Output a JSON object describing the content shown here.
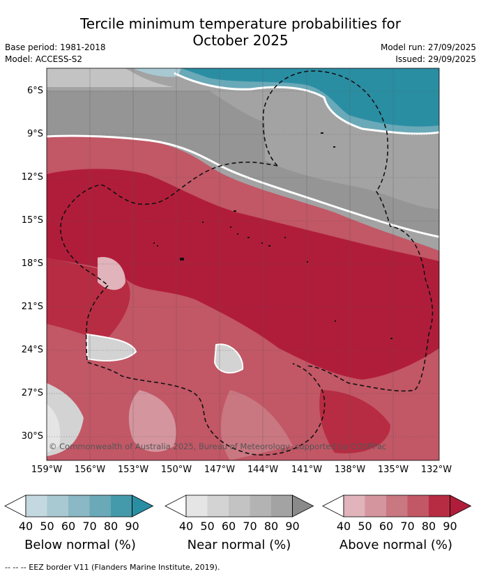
{
  "title_line1": "Tercile minimum temperature probabilities for",
  "title_line2": "October 2025",
  "base_period": "Base period: 1981-2018",
  "model": "Model: ACCESS-S2",
  "model_run": "Model run: 27/09/2025",
  "issued": "Issued: 29/09/2025",
  "copyright": "© Commonwealth of Australia 2025, Bureau of Meteorology, supported by COSPPac",
  "y_labels": [
    "6°S",
    "9°S",
    "12°S",
    "15°S",
    "18°S",
    "21°S",
    "24°S",
    "27°S",
    "30°S"
  ],
  "x_labels": [
    "159°W",
    "156°W",
    "153°W",
    "150°W",
    "147°W",
    "144°W",
    "141°W",
    "138°W",
    "135°W",
    "132°W"
  ],
  "colorbars": [
    {
      "title": "Below normal (%)",
      "ticks": [
        "40",
        "50",
        "60",
        "70",
        "80",
        "90"
      ],
      "colors": [
        "#ffffff",
        "#c3d8df",
        "#a8c9d1",
        "#8ab8c4",
        "#6aa9b8",
        "#449aab",
        "#2a8ea3"
      ]
    },
    {
      "title": "Near normal (%)",
      "ticks": [
        "40",
        "50",
        "60",
        "70",
        "80",
        "90"
      ],
      "colors": [
        "#ffffff",
        "#e5e5e5",
        "#d3d3d3",
        "#c3c3c3",
        "#b3b3b3",
        "#a3a3a3",
        "#8a8a8a"
      ]
    },
    {
      "title": "Above normal (%)",
      "ticks": [
        "40",
        "50",
        "60",
        "70",
        "80",
        "90"
      ],
      "colors": [
        "#ffffff",
        "#e1b3bb",
        "#d4959e",
        "#c97781",
        "#c25766",
        "#b72c42",
        "#b01d3a"
      ]
    }
  ],
  "footer": "--  --  -- EEZ border V11 (Flanders Marine Institute, 2019)."
}
